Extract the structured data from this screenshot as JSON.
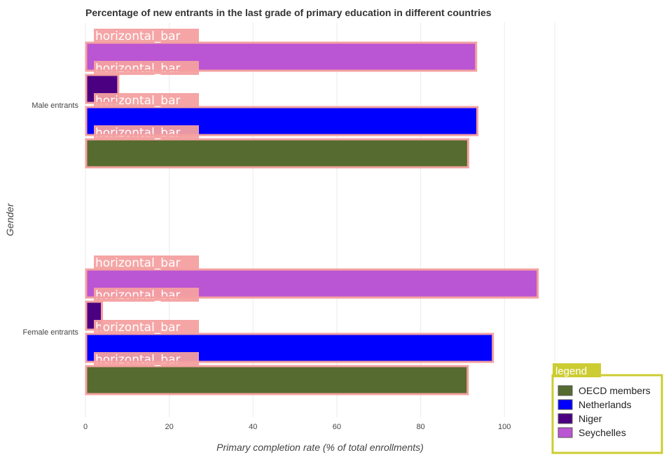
{
  "chart_data": {
    "type": "bar",
    "orientation": "horizontal",
    "title": "Percentage of new entrants in the last grade of primary education in different countries",
    "xlabel": "Primary completion rate (% of total enrollments)",
    "ylabel": "Gender",
    "xlim": [
      0,
      112
    ],
    "xticks": [
      "0",
      "20",
      "40",
      "60",
      "80",
      "100"
    ],
    "categories": [
      "Male entrants",
      "Female entrants"
    ],
    "series": [
      {
        "name": "OECD members",
        "color": "#556b2f",
        "values": [
          91.5,
          91.4
        ]
      },
      {
        "name": "Netherlands",
        "color": "#0000ff",
        "values": [
          93.7,
          97.4
        ]
      },
      {
        "name": "Niger",
        "color": "#4b0082",
        "values": [
          8.0,
          4.1
        ]
      },
      {
        "name": "Seychelles",
        "color": "#ba55d3",
        "values": [
          93.4,
          108.1
        ]
      }
    ],
    "grid": true,
    "legend": {
      "title": "legend",
      "position": "bottom-right"
    },
    "annotation_label": "horizontal_bar"
  }
}
